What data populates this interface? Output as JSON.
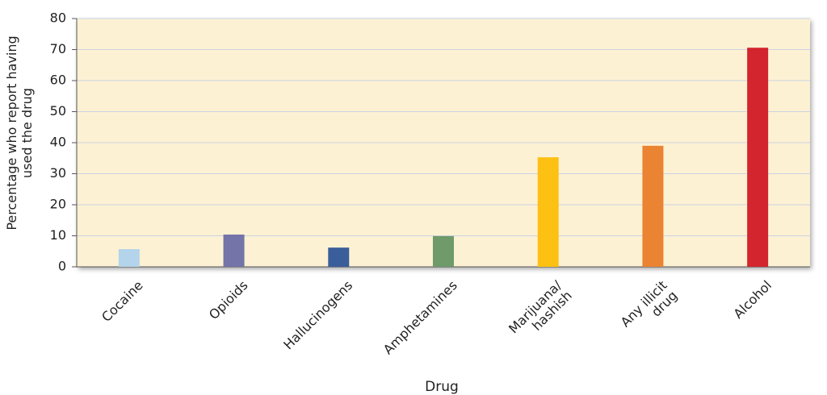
{
  "chart_data": {
    "type": "bar",
    "x_label": "Drug",
    "y_label": "Percentage who report having\nused the drug",
    "categories": [
      "Cocaine",
      "Opioids",
      "Hallucinogens",
      "Amphetamines",
      "Marijuana/\nhashish",
      "Any illicit\ndrug",
      "Alcohol"
    ],
    "values": [
      5.7,
      10.4,
      6.2,
      9.9,
      35.3,
      39,
      70.6
    ],
    "colors": [
      "#b3d4ea",
      "#7474a8",
      "#3a5e99",
      "#6f9a6a",
      "#fdc113",
      "#ea8432",
      "#d2252e"
    ],
    "ylim": [
      0,
      80
    ],
    "yticks": [
      0,
      10,
      20,
      30,
      40,
      50,
      60,
      70,
      80
    ],
    "grid": true
  }
}
